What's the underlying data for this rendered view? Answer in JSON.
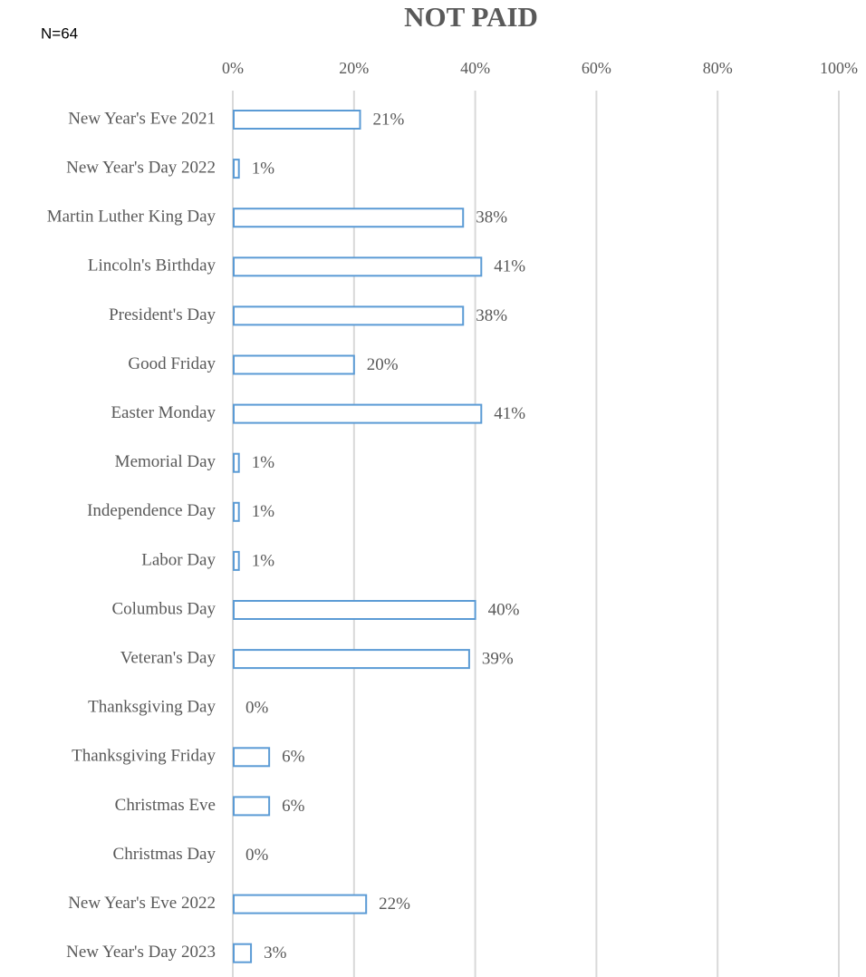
{
  "chart_data": {
    "type": "hbar",
    "title": "NOT PAID",
    "annotation": "N=64",
    "categories": [
      "New Year's Eve 2021",
      "New Year's Day 2022",
      "Martin Luther King Day",
      "Lincoln's Birthday",
      "President's Day",
      "Good Friday",
      "Easter Monday",
      "Memorial Day",
      "Independence Day",
      "Labor Day",
      "Columbus Day",
      "Veteran's Day",
      "Thanksgiving Day",
      "Thanksgiving Friday",
      "Christmas Eve",
      "Christmas Day",
      "New Year's Eve 2022",
      "New Year's Day 2023"
    ],
    "values": [
      21,
      1,
      38,
      41,
      38,
      20,
      41,
      1,
      1,
      1,
      40,
      39,
      0,
      6,
      6,
      0,
      22,
      3
    ],
    "value_labels": [
      "21%",
      "1%",
      "38%",
      "41%",
      "38%",
      "20%",
      "41%",
      "1%",
      "1%",
      "1%",
      "40%",
      "39%",
      "0%",
      "6%",
      "6%",
      "0%",
      "22%",
      "3%"
    ],
    "color": "#5b9bd5",
    "xlim": [
      0,
      100
    ],
    "xticks": [
      {
        "value": 0,
        "label": "0%"
      },
      {
        "value": 20,
        "label": "20%"
      },
      {
        "value": 40,
        "label": "40%"
      },
      {
        "value": 60,
        "label": "60%"
      },
      {
        "value": 80,
        "label": "80%"
      },
      {
        "value": 100,
        "label": "100%"
      }
    ],
    "grid": true
  }
}
